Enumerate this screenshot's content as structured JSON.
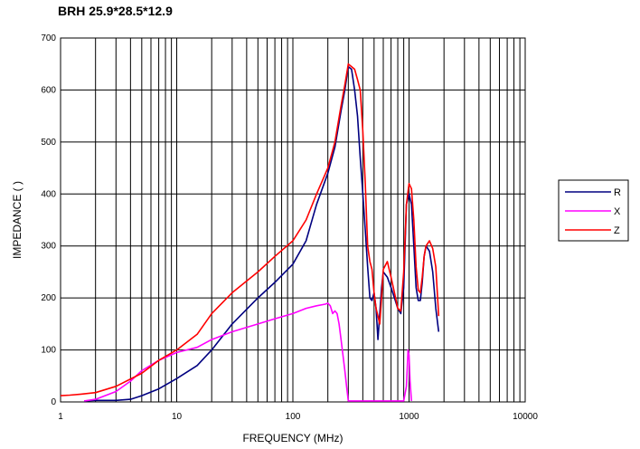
{
  "chart_data": {
    "type": "line",
    "title": "BRH 25.9*28.5*12.9",
    "xlabel": "FREQUENCY (MHz)",
    "ylabel": "IMPEDANCE (  )",
    "x_scale": "log",
    "xlim": [
      1,
      10000
    ],
    "ylim": [
      0,
      700
    ],
    "x_ticks": [
      "1",
      "10",
      "100",
      "1000",
      "10000"
    ],
    "y_ticks": [
      "0",
      "100",
      "200",
      "300",
      "400",
      "500",
      "600",
      "700"
    ],
    "grid": true,
    "legend": "right",
    "series": [
      {
        "name": "R",
        "color": "#000080",
        "x": [
          1.6,
          2,
          3,
          4,
          5,
          7,
          10,
          15,
          20,
          30,
          50,
          70,
          100,
          130,
          160,
          200,
          230,
          260,
          280,
          300,
          320,
          340,
          360,
          380,
          400,
          420,
          440,
          460,
          480,
          500,
          520,
          540,
          560,
          580,
          600,
          650,
          700,
          750,
          800,
          850,
          900,
          950,
          1000,
          1050,
          1100,
          1150,
          1200,
          1250,
          1300,
          1350,
          1400,
          1500,
          1600,
          1700,
          1800
        ],
        "y": [
          2,
          3,
          3,
          5,
          12,
          25,
          45,
          70,
          100,
          150,
          200,
          230,
          265,
          310,
          380,
          440,
          490,
          560,
          600,
          645,
          640,
          600,
          550,
          470,
          400,
          330,
          260,
          200,
          195,
          210,
          180,
          120,
          170,
          220,
          250,
          240,
          220,
          200,
          180,
          170,
          220,
          380,
          400,
          380,
          300,
          220,
          195,
          195,
          230,
          280,
          300,
          290,
          250,
          180,
          135
        ]
      },
      {
        "name": "X",
        "color": "#FF00FF",
        "x": [
          1.6,
          2,
          3,
          4,
          5,
          7,
          10,
          15,
          20,
          30,
          50,
          70,
          100,
          130,
          160,
          190,
          200,
          210,
          220,
          230,
          240,
          250,
          260,
          270,
          280,
          290,
          300,
          660,
          700,
          900,
          950,
          980,
          1000,
          1020,
          1050
        ],
        "y": [
          2,
          5,
          20,
          40,
          60,
          80,
          95,
          105,
          120,
          135,
          150,
          160,
          170,
          180,
          185,
          188,
          190,
          185,
          170,
          175,
          170,
          150,
          120,
          90,
          60,
          30,
          2,
          2,
          2,
          2,
          30,
          100,
          90,
          40,
          2
        ]
      },
      {
        "name": "Z",
        "color": "#FF0000",
        "x": [
          1,
          1.2,
          1.5,
          2,
          3,
          5,
          7,
          10,
          15,
          20,
          30,
          50,
          70,
          100,
          130,
          160,
          200,
          230,
          260,
          280,
          300,
          320,
          340,
          360,
          380,
          400,
          420,
          440,
          460,
          480,
          500,
          520,
          540,
          560,
          580,
          600,
          650,
          700,
          750,
          800,
          850,
          900,
          950,
          1000,
          1050,
          1100,
          1150,
          1200,
          1250,
          1300,
          1350,
          1400,
          1500,
          1600,
          1700,
          1800
        ],
        "y": [
          12,
          13,
          15,
          18,
          30,
          55,
          80,
          100,
          130,
          170,
          210,
          250,
          280,
          310,
          350,
          400,
          450,
          500,
          570,
          610,
          650,
          645,
          640,
          620,
          600,
          520,
          420,
          300,
          270,
          255,
          210,
          180,
          165,
          150,
          200,
          255,
          270,
          240,
          210,
          180,
          175,
          250,
          380,
          420,
          410,
          350,
          260,
          215,
          210,
          240,
          280,
          300,
          310,
          295,
          260,
          165
        ]
      }
    ]
  }
}
